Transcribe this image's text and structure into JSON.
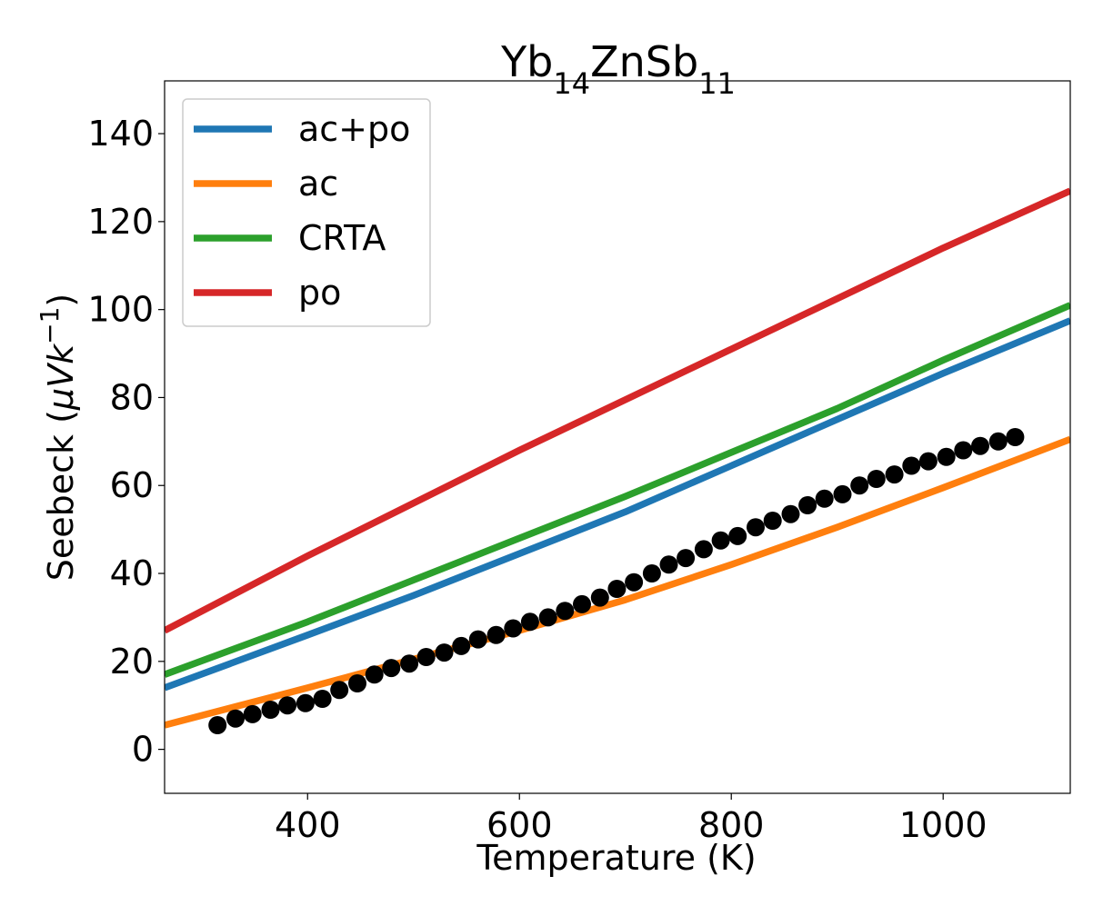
{
  "chart_data": {
    "type": "line",
    "title": {
      "base": "Yb",
      "sub1": "14",
      "mid": "ZnSb",
      "sub2": "11"
    },
    "xlabel": "Temperature (K)",
    "ylabel": {
      "prefix": "Seebeck (",
      "mu": "μ",
      "V": "V",
      "k": "k",
      "sup": "−1",
      "suffix": ")"
    },
    "xlim": [
      265,
      1120
    ],
    "ylim": [
      -10,
      152
    ],
    "xticks": [
      400,
      600,
      800,
      1000
    ],
    "yticks": [
      0,
      20,
      40,
      60,
      80,
      100,
      120,
      140
    ],
    "legend_position": "top-left",
    "grid": false,
    "series": [
      {
        "name": "ac+po",
        "color": "#1f77b4",
        "x": [
          265,
          400,
          500,
          600,
          700,
          800,
          900,
          1000,
          1120
        ],
        "y": [
          14.0,
          26.0,
          35.0,
          44.5,
          54.0,
          64.5,
          75.0,
          85.5,
          97.5
        ]
      },
      {
        "name": "ac",
        "color": "#ff7f0e",
        "x": [
          265,
          400,
          500,
          600,
          700,
          800,
          900,
          1000,
          1120
        ],
        "y": [
          5.5,
          14.0,
          20.5,
          27.0,
          34.0,
          42.0,
          50.5,
          59.5,
          70.5
        ]
      },
      {
        "name": "CRTA",
        "color": "#2ca02c",
        "x": [
          265,
          400,
          500,
          600,
          700,
          800,
          900,
          1000,
          1120
        ],
        "y": [
          17.0,
          29.0,
          38.5,
          48.0,
          57.5,
          67.5,
          77.5,
          88.5,
          101.0
        ]
      },
      {
        "name": "po",
        "color": "#d62728",
        "x": [
          265,
          400,
          500,
          600,
          700,
          800,
          900,
          1000,
          1120
        ],
        "y": [
          27.0,
          44.0,
          56.0,
          68.0,
          79.5,
          91.0,
          102.5,
          114.0,
          127.0
        ]
      }
    ],
    "scatter": {
      "color": "#000000",
      "x": [
        315,
        332,
        348,
        365,
        381,
        398,
        414,
        430,
        447,
        463,
        479,
        496,
        512,
        529,
        545,
        561,
        578,
        594,
        610,
        627,
        643,
        659,
        676,
        692,
        708,
        725,
        741,
        757,
        774,
        790,
        806,
        823,
        839,
        856,
        872,
        888,
        905,
        921,
        937,
        954,
        970,
        986,
        1003,
        1019,
        1035,
        1052,
        1068
      ],
      "y": [
        5.5,
        7.0,
        8.0,
        9.0,
        10.0,
        10.5,
        11.5,
        13.5,
        15.0,
        17.0,
        18.5,
        19.5,
        21.0,
        22.0,
        23.5,
        25.0,
        26.0,
        27.5,
        29.0,
        30.0,
        31.5,
        33.0,
        34.5,
        36.5,
        38.0,
        40.0,
        42.0,
        43.5,
        45.5,
        47.5,
        48.5,
        50.5,
        52.0,
        53.5,
        55.5,
        57.0,
        58.0,
        60.0,
        61.5,
        62.5,
        64.5,
        65.5,
        66.5,
        68.0,
        69.0,
        70.0,
        71.0
      ]
    }
  }
}
